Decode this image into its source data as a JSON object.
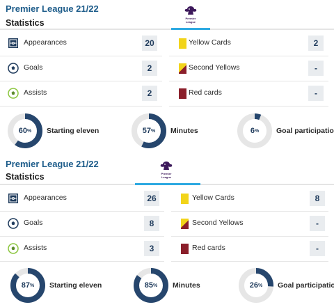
{
  "colors": {
    "ring_fill": "#26466d",
    "ring_track": "#e6e6e6",
    "accent": "#2da9e1",
    "title": "#1d5c8a",
    "yellow_card": "#f2d41a",
    "red_card": "#8b1f2b"
  },
  "blocks": [
    {
      "title": "Premier League 21/22",
      "subtitle": "Statistics",
      "logo_text": "Premier League",
      "left_stats": [
        {
          "icon": "pitch-icon",
          "label": "Appearances",
          "value": "20"
        },
        {
          "icon": "ball-icon",
          "label": "Goals",
          "value": "2"
        },
        {
          "icon": "assist-icon",
          "label": "Assists",
          "value": "2"
        }
      ],
      "right_stats": [
        {
          "icon": "yellow-card-icon",
          "label": "Yellow Cards",
          "value": "2"
        },
        {
          "icon": "second-yellow-icon",
          "label": "Second Yellows",
          "value": "-"
        },
        {
          "icon": "red-card-icon",
          "label": "Red cards",
          "value": "-"
        }
      ],
      "rings": [
        {
          "value": 60,
          "unit": "%",
          "label": "Starting eleven"
        },
        {
          "value": 57,
          "unit": "%",
          "label": "Minutes"
        },
        {
          "value": 6,
          "unit": "%",
          "label": "Goal participation"
        }
      ]
    },
    {
      "title": "Premier League 21/22",
      "subtitle": "Statistics",
      "logo_text": "Premier League",
      "left_stats": [
        {
          "icon": "pitch-icon",
          "label": "Appearances",
          "value": "26"
        },
        {
          "icon": "ball-icon",
          "label": "Goals",
          "value": "8"
        },
        {
          "icon": "assist-icon",
          "label": "Assists",
          "value": "3"
        }
      ],
      "right_stats": [
        {
          "icon": "yellow-card-icon",
          "label": "Yellow Cards",
          "value": "8"
        },
        {
          "icon": "second-yellow-icon",
          "label": "Second Yellows",
          "value": "-"
        },
        {
          "icon": "red-card-icon",
          "label": "Red cards",
          "value": "-"
        }
      ],
      "rings": [
        {
          "value": 87,
          "unit": "%",
          "label": "Starting eleven"
        },
        {
          "value": 85,
          "unit": "%",
          "label": "Minutes"
        },
        {
          "value": 26,
          "unit": "%",
          "label": "Goal participation"
        }
      ]
    }
  ]
}
